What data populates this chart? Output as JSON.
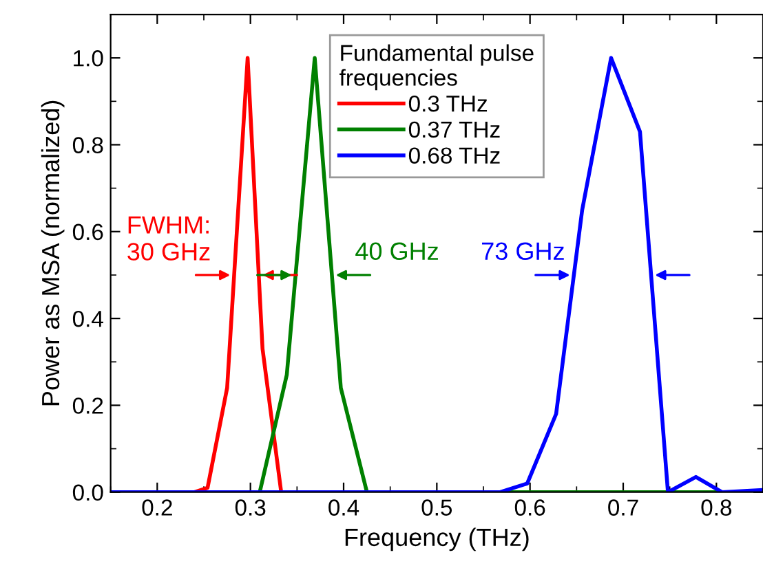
{
  "chart_data": {
    "type": "line",
    "xlabel": "Frequency (THz)",
    "ylabel": "Power as MSA (normalized)",
    "legend_title": "Fundamental pulse\nfrequencies",
    "legend": "top center",
    "xlim": [
      0.15,
      0.85
    ],
    "ylim": [
      0,
      1.1
    ],
    "xticks": [
      0.2,
      0.3,
      0.4,
      0.5,
      0.6,
      0.7,
      0.8
    ],
    "yticks": [
      {
        "value": 0,
        "label": "0.0"
      },
      0.2,
      0.4,
      0.6,
      0.8,
      {
        "value": 1,
        "label": "1.0"
      }
    ],
    "grid": false,
    "marker": "none",
    "line_style": "solid",
    "series": [
      {
        "name": "0.3 THz",
        "color": "#ff0000",
        "x": [
          0.15,
          0.24,
          0.254,
          0.275,
          0.297,
          0.313,
          0.333,
          0.85
        ],
        "values": [
          0,
          0,
          0.01,
          0.24,
          1.0,
          0.33,
          0,
          0
        ]
      },
      {
        "name": "0.37 THz",
        "color": "#008000",
        "x": [
          0.15,
          0.31,
          0.339,
          0.369,
          0.397,
          0.425,
          0.85
        ],
        "values": [
          0,
          0,
          0.27,
          1.0,
          0.24,
          0,
          0
        ]
      },
      {
        "name": "0.68 THz",
        "color": "#0000ff",
        "x": [
          0.15,
          0.568,
          0.597,
          0.628,
          0.656,
          0.687,
          0.718,
          0.748,
          0.778,
          0.806,
          0.85
        ],
        "values": [
          0,
          0,
          0.02,
          0.18,
          0.65,
          1.0,
          0.83,
          0,
          0.035,
          0,
          0.005
        ]
      }
    ],
    "annotations": [
      "FWHM:\n30 GHz",
      "40 GHz",
      "73 GHz"
    ]
  }
}
